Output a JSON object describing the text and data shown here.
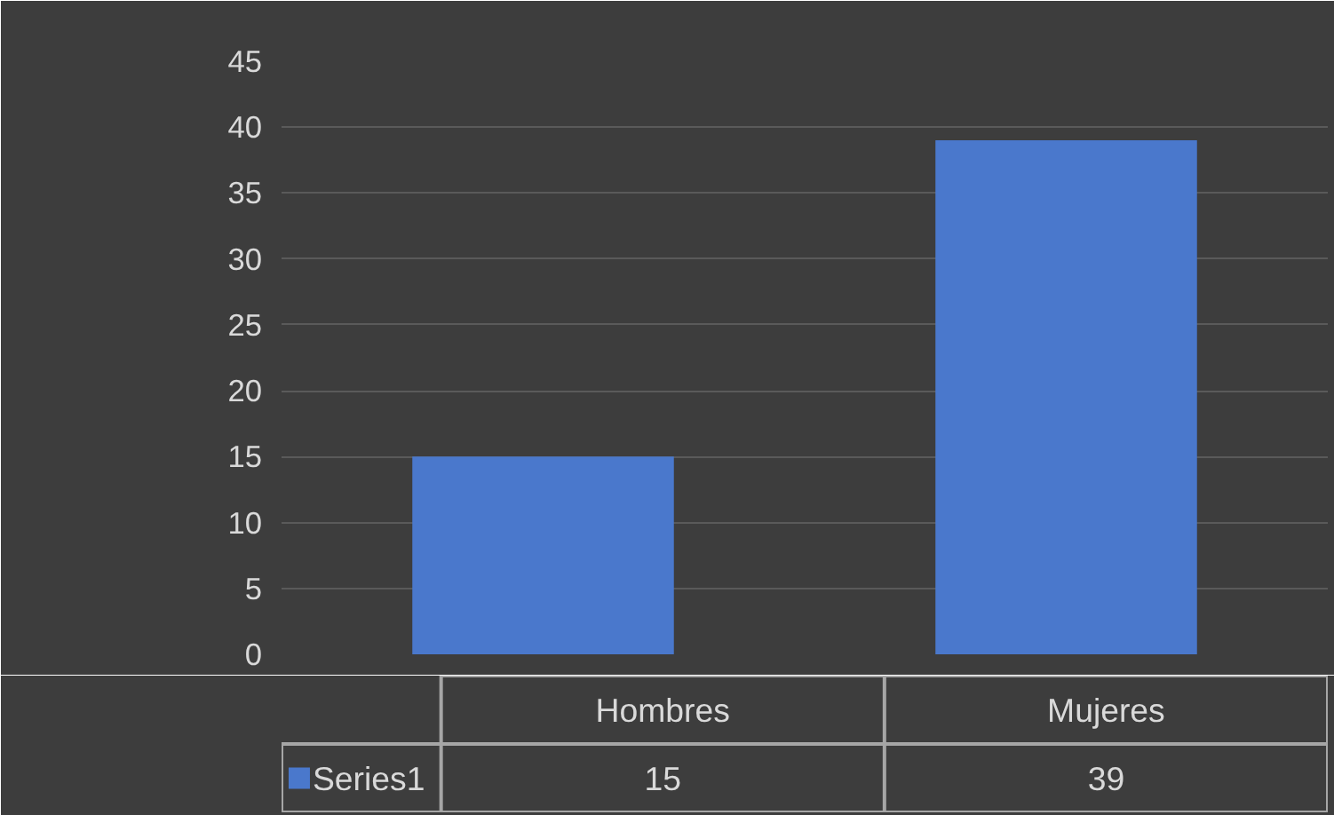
{
  "chart_data": {
    "type": "bar",
    "categories": [
      "Hombres",
      "Mujeres"
    ],
    "series": [
      {
        "name": "Series1",
        "color": "#4a78cc",
        "values": [
          15,
          39
        ]
      }
    ],
    "ylim": [
      0,
      45
    ],
    "yticks": [
      0,
      5,
      10,
      15,
      20,
      25,
      30,
      35,
      40,
      45
    ],
    "grid": "y",
    "data_labels": true,
    "legend": "bottom left"
  }
}
